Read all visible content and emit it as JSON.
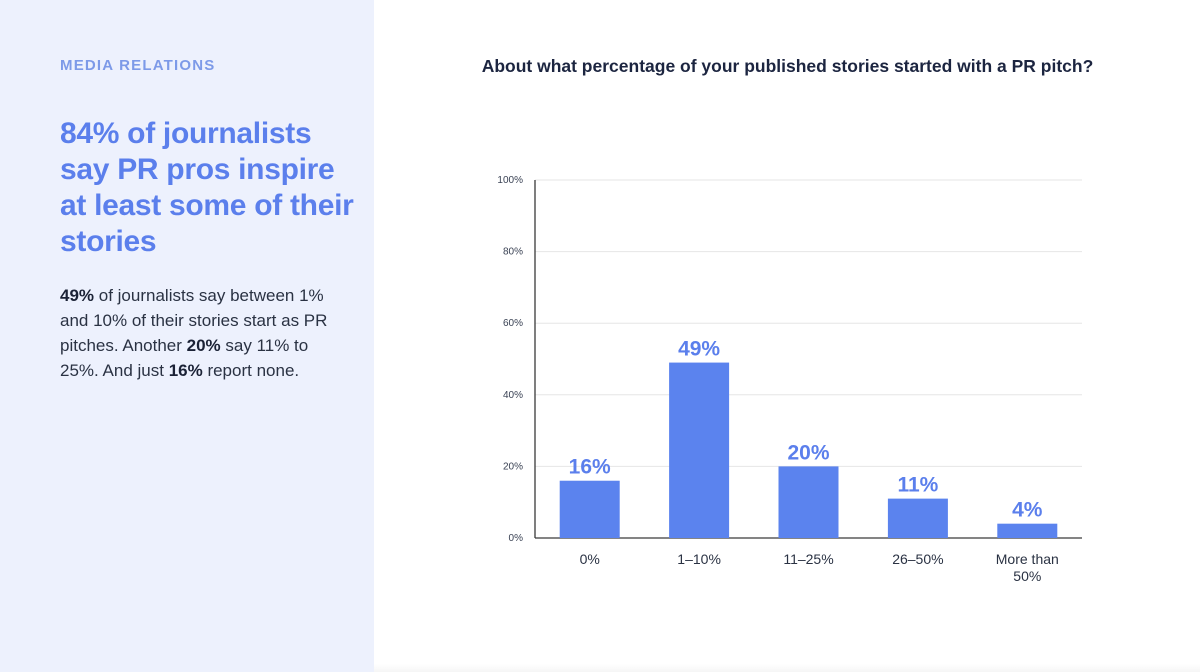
{
  "side": {
    "eyebrow": "MEDIA RELATIONS",
    "headline": "84% of journalists say PR pros inspire at least some of their stories",
    "body": {
      "b1": "49%",
      "t1": " of journalists say between 1% and 10% of their stories start as PR pitches. Another ",
      "b2": "20%",
      "t2": " say 11% to 25%. And just ",
      "b3": "16%",
      "t3": " report none."
    }
  },
  "colors": {
    "bar": "#5b83ee",
    "accent": "#5b7fec",
    "panel": "#edf1fd",
    "gridline": "#e6e6e6",
    "axis": "#3a3a3a"
  },
  "chart_data": {
    "type": "bar",
    "title": "About what percentage of your published stories started with a PR pitch?",
    "categories": [
      "0%",
      "1–10%",
      "11–25%",
      "26–50%",
      "More than 50%"
    ],
    "values": [
      16,
      49,
      20,
      11,
      4
    ],
    "data_labels": [
      "16%",
      "49%",
      "20%",
      "11%",
      "4%"
    ],
    "yticks": [
      "0%",
      "20%",
      "40%",
      "60%",
      "80%",
      "100%"
    ],
    "ylim": [
      0,
      100
    ],
    "grid": true,
    "legend": "none"
  }
}
